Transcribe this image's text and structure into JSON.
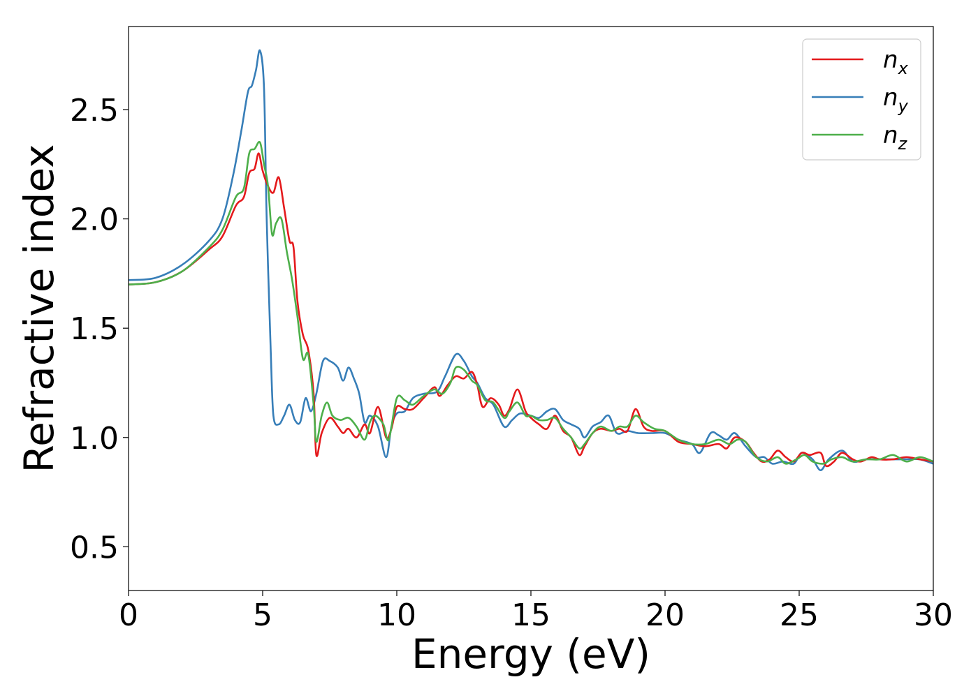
{
  "chart_data": {
    "type": "line",
    "title": "",
    "xlabel": "Energy (eV)",
    "ylabel": "Refractive index",
    "xlim": [
      0,
      30
    ],
    "ylim": [
      0.3,
      2.88
    ],
    "xticks": [
      0,
      5,
      10,
      15,
      20,
      25,
      30
    ],
    "xtick_labels": [
      "0",
      "5",
      "10",
      "15",
      "20",
      "25",
      "30"
    ],
    "yticks": [
      0.5,
      1.0,
      1.5,
      2.0,
      2.5
    ],
    "ytick_labels": [
      "0.5",
      "1.0",
      "1.5",
      "2.0",
      "2.5"
    ],
    "grid": false,
    "legend_position": "top-right",
    "series": [
      {
        "name": "n_x",
        "label_base": "n",
        "label_sub": "x",
        "color": "#e41a1c",
        "points": [
          [
            0,
            1.7
          ],
          [
            1,
            1.71
          ],
          [
            2,
            1.76
          ],
          [
            3,
            1.86
          ],
          [
            3.5,
            1.92
          ],
          [
            4,
            2.06
          ],
          [
            4.3,
            2.1
          ],
          [
            4.5,
            2.21
          ],
          [
            4.7,
            2.23
          ],
          [
            4.85,
            2.3
          ],
          [
            5.0,
            2.22
          ],
          [
            5.2,
            2.15
          ],
          [
            5.4,
            2.12
          ],
          [
            5.6,
            2.19
          ],
          [
            5.8,
            2.05
          ],
          [
            6.0,
            1.9
          ],
          [
            6.15,
            1.87
          ],
          [
            6.3,
            1.62
          ],
          [
            6.5,
            1.47
          ],
          [
            6.7,
            1.4
          ],
          [
            6.9,
            1.2
          ],
          [
            7.0,
            0.92
          ],
          [
            7.2,
            1.02
          ],
          [
            7.5,
            1.09
          ],
          [
            7.8,
            1.05
          ],
          [
            8.0,
            1.02
          ],
          [
            8.2,
            1.04
          ],
          [
            8.5,
            1.0
          ],
          [
            8.8,
            1.06
          ],
          [
            9.0,
            1.02
          ],
          [
            9.3,
            1.14
          ],
          [
            9.6,
            1.0
          ],
          [
            9.8,
            1.04
          ],
          [
            10.0,
            1.14
          ],
          [
            10.3,
            1.13
          ],
          [
            10.6,
            1.13
          ],
          [
            11.0,
            1.18
          ],
          [
            11.4,
            1.23
          ],
          [
            11.6,
            1.19
          ],
          [
            11.9,
            1.24
          ],
          [
            12.2,
            1.28
          ],
          [
            12.5,
            1.27
          ],
          [
            12.8,
            1.3
          ],
          [
            13.0,
            1.24
          ],
          [
            13.2,
            1.14
          ],
          [
            13.5,
            1.18
          ],
          [
            13.8,
            1.15
          ],
          [
            14.0,
            1.1
          ],
          [
            14.2,
            1.13
          ],
          [
            14.5,
            1.22
          ],
          [
            14.8,
            1.12
          ],
          [
            15.0,
            1.09
          ],
          [
            15.3,
            1.06
          ],
          [
            15.6,
            1.04
          ],
          [
            15.9,
            1.1
          ],
          [
            16.2,
            1.03
          ],
          [
            16.5,
            1.0
          ],
          [
            16.8,
            0.92
          ],
          [
            17.0,
            0.96
          ],
          [
            17.3,
            1.02
          ],
          [
            17.6,
            1.04
          ],
          [
            18.0,
            1.03
          ],
          [
            18.3,
            1.04
          ],
          [
            18.6,
            1.03
          ],
          [
            18.9,
            1.13
          ],
          [
            19.2,
            1.05
          ],
          [
            19.5,
            1.03
          ],
          [
            20.0,
            1.03
          ],
          [
            20.5,
            0.98
          ],
          [
            21.0,
            0.97
          ],
          [
            21.5,
            0.96
          ],
          [
            22.0,
            0.97
          ],
          [
            22.3,
            0.95
          ],
          [
            22.6,
            1.0
          ],
          [
            23.0,
            0.98
          ],
          [
            23.3,
            0.93
          ],
          [
            23.6,
            0.89
          ],
          [
            23.9,
            0.9
          ],
          [
            24.2,
            0.94
          ],
          [
            24.5,
            0.91
          ],
          [
            24.8,
            0.89
          ],
          [
            25.1,
            0.93
          ],
          [
            25.4,
            0.92
          ],
          [
            25.8,
            0.93
          ],
          [
            26.0,
            0.87
          ],
          [
            26.3,
            0.89
          ],
          [
            26.6,
            0.93
          ],
          [
            27.0,
            0.9
          ],
          [
            27.3,
            0.89
          ],
          [
            27.7,
            0.91
          ],
          [
            28.0,
            0.9
          ],
          [
            28.5,
            0.9
          ],
          [
            29.0,
            0.91
          ],
          [
            29.5,
            0.9
          ],
          [
            30.0,
            0.89
          ]
        ]
      },
      {
        "name": "n_y",
        "label_base": "n",
        "label_sub": "y",
        "color": "#377eb8",
        "points": [
          [
            0,
            1.72
          ],
          [
            1,
            1.73
          ],
          [
            2,
            1.79
          ],
          [
            3,
            1.9
          ],
          [
            3.5,
            2.0
          ],
          [
            3.9,
            2.2
          ],
          [
            4.2,
            2.4
          ],
          [
            4.45,
            2.58
          ],
          [
            4.6,
            2.61
          ],
          [
            4.75,
            2.68
          ],
          [
            4.9,
            2.77
          ],
          [
            5.05,
            2.6
          ],
          [
            5.15,
            2.0
          ],
          [
            5.3,
            1.4
          ],
          [
            5.4,
            1.1
          ],
          [
            5.6,
            1.06
          ],
          [
            5.8,
            1.1
          ],
          [
            6.0,
            1.15
          ],
          [
            6.2,
            1.08
          ],
          [
            6.4,
            1.07
          ],
          [
            6.6,
            1.18
          ],
          [
            6.8,
            1.12
          ],
          [
            7.0,
            1.2
          ],
          [
            7.25,
            1.35
          ],
          [
            7.5,
            1.35
          ],
          [
            7.8,
            1.32
          ],
          [
            8.0,
            1.26
          ],
          [
            8.2,
            1.32
          ],
          [
            8.4,
            1.27
          ],
          [
            8.6,
            1.2
          ],
          [
            8.8,
            1.07
          ],
          [
            9.0,
            1.1
          ],
          [
            9.3,
            1.05
          ],
          [
            9.6,
            0.91
          ],
          [
            9.8,
            1.05
          ],
          [
            10.0,
            1.11
          ],
          [
            10.3,
            1.12
          ],
          [
            10.6,
            1.18
          ],
          [
            11.0,
            1.2
          ],
          [
            11.5,
            1.21
          ],
          [
            11.8,
            1.28
          ],
          [
            12.2,
            1.38
          ],
          [
            12.5,
            1.35
          ],
          [
            12.8,
            1.28
          ],
          [
            13.0,
            1.25
          ],
          [
            13.3,
            1.18
          ],
          [
            13.6,
            1.15
          ],
          [
            14.0,
            1.05
          ],
          [
            14.3,
            1.08
          ],
          [
            14.6,
            1.11
          ],
          [
            15.0,
            1.1
          ],
          [
            15.3,
            1.09
          ],
          [
            15.6,
            1.12
          ],
          [
            15.9,
            1.13
          ],
          [
            16.2,
            1.08
          ],
          [
            16.5,
            1.06
          ],
          [
            16.8,
            1.04
          ],
          [
            17.0,
            1.0
          ],
          [
            17.3,
            1.05
          ],
          [
            17.6,
            1.07
          ],
          [
            17.9,
            1.1
          ],
          [
            18.2,
            1.02
          ],
          [
            18.6,
            1.03
          ],
          [
            19.0,
            1.02
          ],
          [
            19.5,
            1.02
          ],
          [
            20.0,
            1.02
          ],
          [
            20.5,
            0.99
          ],
          [
            21.0,
            0.97
          ],
          [
            21.3,
            0.93
          ],
          [
            21.7,
            1.02
          ],
          [
            22.0,
            1.01
          ],
          [
            22.3,
            0.99
          ],
          [
            22.6,
            1.02
          ],
          [
            23.0,
            0.96
          ],
          [
            23.4,
            0.91
          ],
          [
            23.7,
            0.91
          ],
          [
            24.0,
            0.88
          ],
          [
            24.4,
            0.89
          ],
          [
            24.8,
            0.88
          ],
          [
            25.1,
            0.93
          ],
          [
            25.5,
            0.9
          ],
          [
            25.8,
            0.85
          ],
          [
            26.1,
            0.9
          ],
          [
            26.6,
            0.94
          ],
          [
            27.0,
            0.89
          ],
          [
            27.5,
            0.9
          ],
          [
            28.0,
            0.9
          ],
          [
            28.5,
            0.9
          ],
          [
            29.0,
            0.9
          ],
          [
            29.5,
            0.9
          ],
          [
            30.0,
            0.88
          ]
        ]
      },
      {
        "name": "n_z",
        "label_base": "n",
        "label_sub": "z",
        "color": "#4daf4a",
        "points": [
          [
            0,
            1.7
          ],
          [
            1,
            1.71
          ],
          [
            2,
            1.76
          ],
          [
            3,
            1.87
          ],
          [
            3.5,
            1.95
          ],
          [
            4.0,
            2.1
          ],
          [
            4.3,
            2.14
          ],
          [
            4.5,
            2.3
          ],
          [
            4.7,
            2.32
          ],
          [
            4.9,
            2.35
          ],
          [
            5.05,
            2.25
          ],
          [
            5.2,
            2.15
          ],
          [
            5.35,
            1.93
          ],
          [
            5.5,
            1.98
          ],
          [
            5.7,
            2.0
          ],
          [
            5.9,
            1.85
          ],
          [
            6.1,
            1.72
          ],
          [
            6.3,
            1.55
          ],
          [
            6.5,
            1.36
          ],
          [
            6.7,
            1.38
          ],
          [
            6.9,
            1.15
          ],
          [
            7.0,
            0.98
          ],
          [
            7.2,
            1.1
          ],
          [
            7.4,
            1.16
          ],
          [
            7.6,
            1.1
          ],
          [
            7.9,
            1.08
          ],
          [
            8.2,
            1.09
          ],
          [
            8.5,
            1.05
          ],
          [
            8.8,
            0.99
          ],
          [
            9.0,
            1.07
          ],
          [
            9.2,
            1.1
          ],
          [
            9.5,
            1.06
          ],
          [
            9.7,
            0.99
          ],
          [
            10.0,
            1.18
          ],
          [
            10.3,
            1.17
          ],
          [
            10.6,
            1.15
          ],
          [
            11.0,
            1.19
          ],
          [
            11.4,
            1.22
          ],
          [
            11.7,
            1.2
          ],
          [
            12.0,
            1.25
          ],
          [
            12.2,
            1.32
          ],
          [
            12.5,
            1.31
          ],
          [
            12.8,
            1.26
          ],
          [
            13.0,
            1.24
          ],
          [
            13.3,
            1.17
          ],
          [
            13.6,
            1.16
          ],
          [
            14.0,
            1.09
          ],
          [
            14.2,
            1.12
          ],
          [
            14.5,
            1.16
          ],
          [
            14.8,
            1.1
          ],
          [
            15.0,
            1.1
          ],
          [
            15.3,
            1.08
          ],
          [
            15.6,
            1.08
          ],
          [
            15.9,
            1.09
          ],
          [
            16.2,
            1.04
          ],
          [
            16.5,
            1.0
          ],
          [
            16.8,
            0.95
          ],
          [
            17.0,
            0.97
          ],
          [
            17.3,
            1.02
          ],
          [
            17.6,
            1.05
          ],
          [
            18.0,
            1.03
          ],
          [
            18.3,
            1.05
          ],
          [
            18.6,
            1.05
          ],
          [
            18.9,
            1.1
          ],
          [
            19.2,
            1.07
          ],
          [
            19.6,
            1.04
          ],
          [
            20.0,
            1.03
          ],
          [
            20.5,
            0.99
          ],
          [
            21.0,
            0.97
          ],
          [
            21.5,
            0.97
          ],
          [
            22.0,
            0.99
          ],
          [
            22.4,
            0.97
          ],
          [
            22.7,
            0.99
          ],
          [
            23.0,
            0.98
          ],
          [
            23.4,
            0.91
          ],
          [
            23.8,
            0.89
          ],
          [
            24.2,
            0.91
          ],
          [
            24.5,
            0.88
          ],
          [
            24.9,
            0.9
          ],
          [
            25.2,
            0.92
          ],
          [
            25.5,
            0.89
          ],
          [
            25.9,
            0.88
          ],
          [
            26.2,
            0.9
          ],
          [
            26.6,
            0.91
          ],
          [
            27.0,
            0.89
          ],
          [
            27.5,
            0.9
          ],
          [
            28.0,
            0.9
          ],
          [
            28.5,
            0.92
          ],
          [
            29.0,
            0.89
          ],
          [
            29.5,
            0.91
          ],
          [
            30.0,
            0.89
          ]
        ]
      }
    ]
  }
}
